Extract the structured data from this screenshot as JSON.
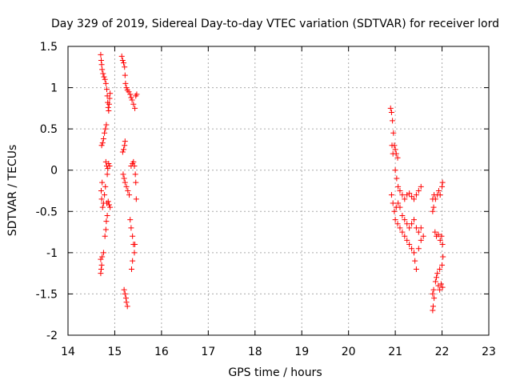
{
  "chart_data": {
    "type": "scatter",
    "title": "Day 329 of 2019, Sidereal Day-to-day VTEC variation (SDTVAR) for receiver lord",
    "xlabel": "GPS time / hours",
    "ylabel": "SDTVAR / TECUs",
    "xlim": [
      14,
      23
    ],
    "ylim": [
      -2,
      1.5
    ],
    "xticks": [
      14,
      15,
      16,
      17,
      18,
      19,
      20,
      21,
      22,
      23
    ],
    "yticks": [
      -2,
      -1.5,
      -1,
      -0.5,
      0,
      0.5,
      1,
      1.5
    ],
    "ytick_labels": [
      "-2",
      "-1.5",
      "-1",
      "-0.5",
      "0",
      "0.5",
      "1",
      "1.5"
    ],
    "grid": true,
    "marker": "+",
    "color": "#ff0000",
    "series": [
      {
        "name": "SDTVAR",
        "points": [
          [
            14.7,
            1.4
          ],
          [
            14.71,
            1.33
          ],
          [
            14.72,
            1.28
          ],
          [
            14.73,
            1.22
          ],
          [
            14.75,
            1.17
          ],
          [
            14.77,
            1.13
          ],
          [
            14.79,
            1.1
          ],
          [
            14.81,
            1.05
          ],
          [
            14.83,
            0.98
          ],
          [
            14.84,
            0.9
          ],
          [
            14.85,
            0.82
          ],
          [
            14.86,
            0.76
          ],
          [
            14.87,
            0.72
          ],
          [
            14.88,
            0.8
          ],
          [
            14.89,
            0.87
          ],
          [
            14.9,
            0.93
          ],
          [
            14.82,
            0.55
          ],
          [
            14.8,
            0.5
          ],
          [
            14.78,
            0.45
          ],
          [
            14.76,
            0.38
          ],
          [
            14.74,
            0.33
          ],
          [
            14.72,
            0.3
          ],
          [
            14.81,
            0.1
          ],
          [
            14.83,
            0.05
          ],
          [
            14.85,
            0.02
          ],
          [
            14.87,
            0.08
          ],
          [
            14.89,
            0.05
          ],
          [
            14.84,
            -0.05
          ],
          [
            14.8,
            -0.2
          ],
          [
            14.78,
            -0.3
          ],
          [
            14.76,
            -0.4
          ],
          [
            14.74,
            -0.45
          ],
          [
            14.72,
            -0.35
          ],
          [
            14.71,
            -0.25
          ],
          [
            14.73,
            -0.15
          ],
          [
            14.83,
            -0.4
          ],
          [
            14.86,
            -0.38
          ],
          [
            14.88,
            -0.42
          ],
          [
            14.9,
            -0.45
          ],
          [
            14.84,
            -0.55
          ],
          [
            14.82,
            -0.62
          ],
          [
            14.81,
            -0.72
          ],
          [
            14.79,
            -0.8
          ],
          [
            14.76,
            -1.0
          ],
          [
            14.73,
            -1.05
          ],
          [
            14.7,
            -1.08
          ],
          [
            14.72,
            -1.15
          ],
          [
            14.71,
            -1.2
          ],
          [
            14.7,
            -1.25
          ],
          [
            15.15,
            1.38
          ],
          [
            15.17,
            1.33
          ],
          [
            15.19,
            1.3
          ],
          [
            15.21,
            1.25
          ],
          [
            15.22,
            1.15
          ],
          [
            15.23,
            1.05
          ],
          [
            15.25,
            1.0
          ],
          [
            15.27,
            0.97
          ],
          [
            15.3,
            0.95
          ],
          [
            15.33,
            0.92
          ],
          [
            15.35,
            0.88
          ],
          [
            15.37,
            0.85
          ],
          [
            15.4,
            0.8
          ],
          [
            15.43,
            0.75
          ],
          [
            15.45,
            0.9
          ],
          [
            15.47,
            0.92
          ],
          [
            15.22,
            0.35
          ],
          [
            15.21,
            0.3
          ],
          [
            15.19,
            0.25
          ],
          [
            15.17,
            0.22
          ],
          [
            15.18,
            -0.05
          ],
          [
            15.2,
            -0.1
          ],
          [
            15.22,
            -0.15
          ],
          [
            15.25,
            -0.2
          ],
          [
            15.28,
            -0.25
          ],
          [
            15.31,
            -0.3
          ],
          [
            15.35,
            0.05
          ],
          [
            15.38,
            0.08
          ],
          [
            15.4,
            0.1
          ],
          [
            15.42,
            0.05
          ],
          [
            15.44,
            -0.05
          ],
          [
            15.45,
            -0.15
          ],
          [
            15.46,
            -0.35
          ],
          [
            15.33,
            -0.6
          ],
          [
            15.35,
            -0.7
          ],
          [
            15.38,
            -0.8
          ],
          [
            15.4,
            -0.9
          ],
          [
            15.42,
            -1.0
          ],
          [
            15.43,
            -0.9
          ],
          [
            15.38,
            -1.1
          ],
          [
            15.36,
            -1.2
          ],
          [
            15.2,
            -1.45
          ],
          [
            15.22,
            -1.5
          ],
          [
            15.24,
            -1.55
          ],
          [
            15.25,
            -1.6
          ],
          [
            15.27,
            -1.65
          ],
          [
            20.9,
            0.75
          ],
          [
            20.92,
            0.7
          ],
          [
            20.94,
            0.6
          ],
          [
            20.96,
            0.45
          ],
          [
            20.93,
            0.3
          ],
          [
            20.95,
            0.2
          ],
          [
            20.98,
            0.3
          ],
          [
            21.0,
            0.25
          ],
          [
            21.02,
            0.2
          ],
          [
            21.05,
            0.15
          ],
          [
            21.0,
            0.0
          ],
          [
            21.03,
            -0.1
          ],
          [
            21.06,
            -0.2
          ],
          [
            21.1,
            -0.25
          ],
          [
            21.15,
            -0.3
          ],
          [
            21.2,
            -0.35
          ],
          [
            21.25,
            -0.3
          ],
          [
            21.3,
            -0.28
          ],
          [
            21.35,
            -0.32
          ],
          [
            21.4,
            -0.35
          ],
          [
            21.45,
            -0.3
          ],
          [
            21.5,
            -0.25
          ],
          [
            21.55,
            -0.2
          ],
          [
            20.92,
            -0.3
          ],
          [
            20.95,
            -0.4
          ],
          [
            20.98,
            -0.5
          ],
          [
            21.02,
            -0.45
          ],
          [
            21.06,
            -0.4
          ],
          [
            21.1,
            -0.45
          ],
          [
            21.15,
            -0.55
          ],
          [
            21.2,
            -0.6
          ],
          [
            21.25,
            -0.65
          ],
          [
            21.3,
            -0.7
          ],
          [
            21.35,
            -0.65
          ],
          [
            21.4,
            -0.6
          ],
          [
            21.45,
            -0.7
          ],
          [
            21.5,
            -0.75
          ],
          [
            21.55,
            -0.7
          ],
          [
            21.0,
            -0.6
          ],
          [
            21.05,
            -0.65
          ],
          [
            21.1,
            -0.7
          ],
          [
            21.15,
            -0.75
          ],
          [
            21.2,
            -0.8
          ],
          [
            21.25,
            -0.85
          ],
          [
            21.3,
            -0.9
          ],
          [
            21.35,
            -0.95
          ],
          [
            21.4,
            -1.0
          ],
          [
            21.42,
            -1.1
          ],
          [
            21.45,
            -1.2
          ],
          [
            21.5,
            -0.95
          ],
          [
            21.55,
            -0.85
          ],
          [
            21.6,
            -0.8
          ],
          [
            21.8,
            -0.35
          ],
          [
            21.83,
            -0.3
          ],
          [
            21.86,
            -0.35
          ],
          [
            21.9,
            -0.3
          ],
          [
            21.93,
            -0.25
          ],
          [
            21.96,
            -0.3
          ],
          [
            22.0,
            -0.2
          ],
          [
            22.01,
            -0.15
          ],
          [
            21.8,
            -0.5
          ],
          [
            21.82,
            -0.45
          ],
          [
            21.85,
            -0.75
          ],
          [
            21.88,
            -0.8
          ],
          [
            21.92,
            -0.78
          ],
          [
            21.96,
            -0.85
          ],
          [
            21.99,
            -0.8
          ],
          [
            22.01,
            -0.9
          ],
          [
            22.02,
            -1.05
          ],
          [
            22.0,
            -1.15
          ],
          [
            21.95,
            -1.2
          ],
          [
            21.9,
            -1.25
          ],
          [
            21.88,
            -1.3
          ],
          [
            21.86,
            -1.35
          ],
          [
            21.92,
            -1.4
          ],
          [
            21.95,
            -1.45
          ],
          [
            21.98,
            -1.38
          ],
          [
            22.01,
            -1.42
          ],
          [
            21.82,
            -1.45
          ],
          [
            21.8,
            -1.5
          ],
          [
            21.83,
            -1.55
          ],
          [
            21.81,
            -1.65
          ],
          [
            21.8,
            -1.7
          ]
        ]
      }
    ]
  }
}
